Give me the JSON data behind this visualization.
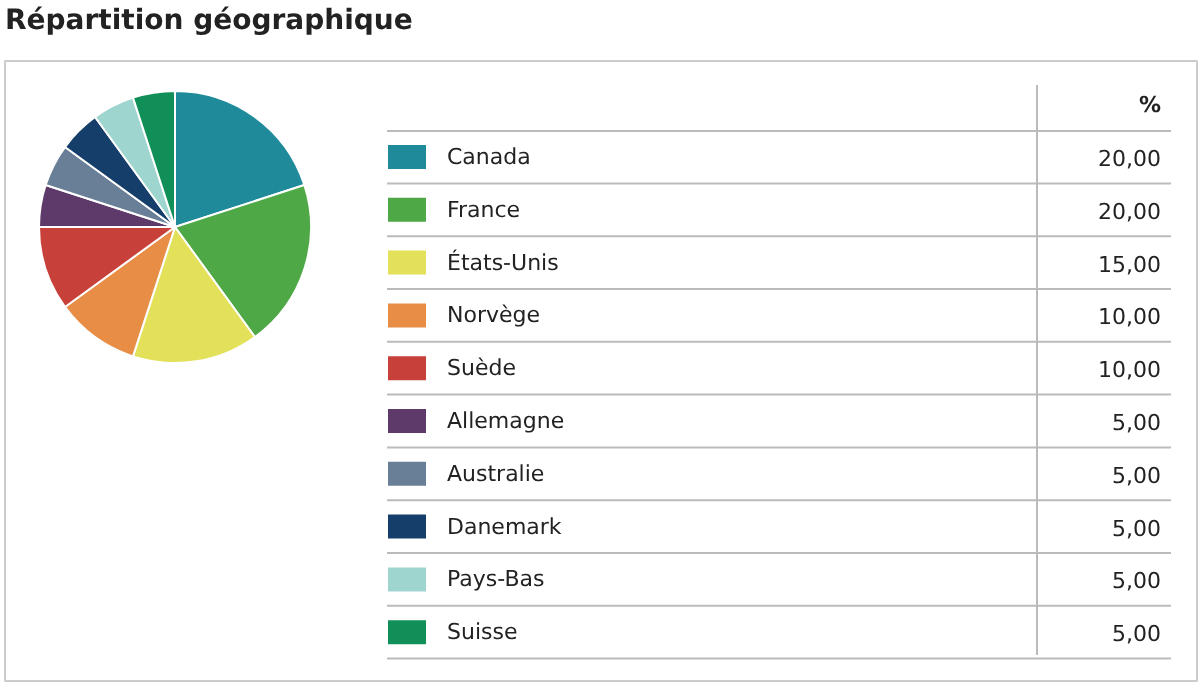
{
  "chart_data": {
    "type": "pie",
    "title": "Répartition géographique",
    "legend_title": "%",
    "legend": "right",
    "categories": [
      "Canada",
      "France",
      "États-Unis",
      "Norvège",
      "Suède",
      "Allemagne",
      "Australie",
      "Danemark",
      "Pays-Bas",
      "Suisse"
    ],
    "values": [
      20,
      20,
      15,
      10,
      10,
      5,
      5,
      5,
      5,
      5
    ],
    "value_labels": [
      "20,00",
      "20,00",
      "15,00",
      "10,00",
      "10,00",
      "5,00",
      "5,00",
      "5,00",
      "5,00",
      "5,00"
    ],
    "colors": [
      "#1e8a9a",
      "#4ea845",
      "#e3e05a",
      "#e88d45",
      "#c8403a",
      "#5e3a6a",
      "#687f97",
      "#163e6b",
      "#9fd5cf",
      "#109058"
    ]
  }
}
